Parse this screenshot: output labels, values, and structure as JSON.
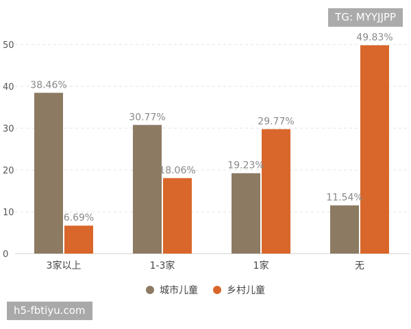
{
  "chart_data": {
    "type": "bar",
    "categories": [
      "3家以上",
      "1-3家",
      "1家",
      "无"
    ],
    "series": [
      {
        "name": "城市儿童",
        "values": [
          38.46,
          30.77,
          19.23,
          11.54
        ],
        "labels": [
          "38.46%",
          "30.77%",
          "19.23%",
          "11.54%"
        ],
        "color": "#8c7a62"
      },
      {
        "name": "乡村儿童",
        "values": [
          6.69,
          18.06,
          29.77,
          49.83
        ],
        "labels": [
          "6.69%",
          "18.06%",
          "29.77%",
          "49.83%"
        ],
        "color": "#d9672b"
      }
    ],
    "y_ticks": [
      "0",
      "10",
      "20",
      "30",
      "40",
      "50"
    ],
    "ylim": [
      0,
      50
    ],
    "grid": true,
    "legend_position": "bottom"
  },
  "watermarks": {
    "top_right": "TG: MYYJJPP",
    "bottom_left": "h5-fbtiyu.com"
  }
}
